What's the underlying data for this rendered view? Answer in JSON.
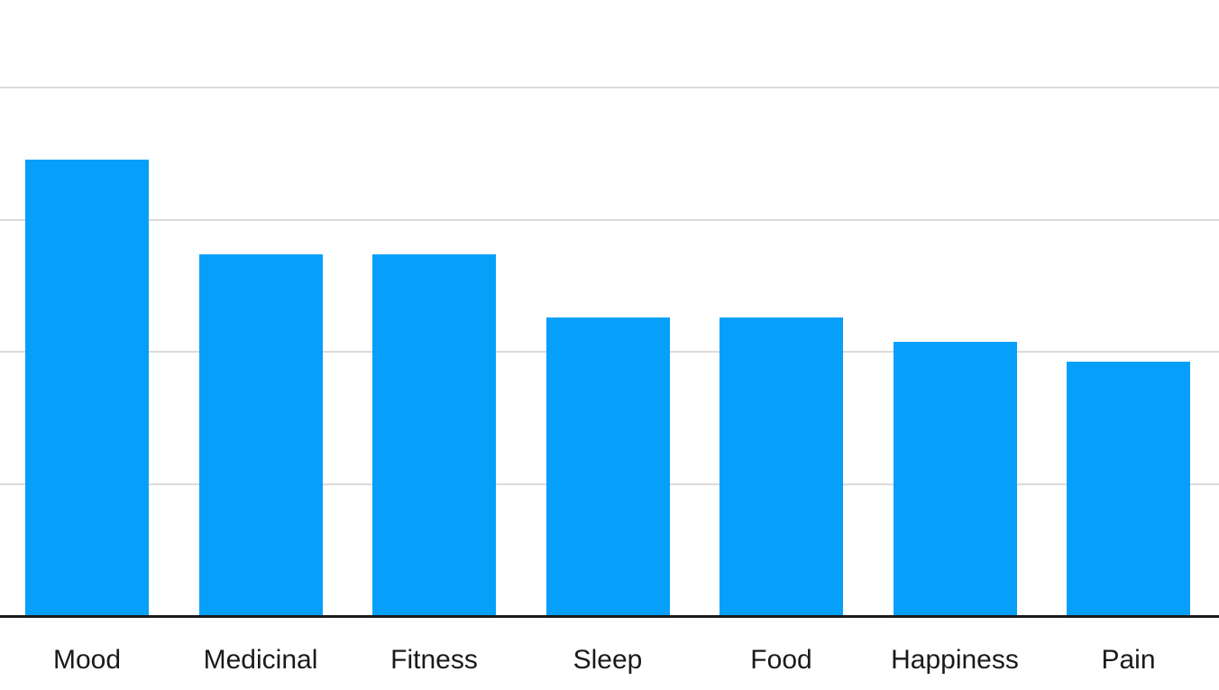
{
  "chart_data": {
    "type": "bar",
    "title": "",
    "xlabel": "",
    "ylabel": "",
    "categories": [
      "Mood",
      "Medicinal",
      "Fitness",
      "Sleep",
      "Food",
      "Happiness",
      "Pain"
    ],
    "values": [
      3.45,
      2.73,
      2.73,
      2.25,
      2.25,
      2.07,
      1.92
    ],
    "ylim": [
      0,
      4
    ],
    "gridline_values": [
      1,
      2,
      3,
      4
    ],
    "grid": "horizontal",
    "legend": "none",
    "y_tick_labels_shown": false,
    "colors": {
      "bar": "#06A0FA",
      "gridline": "#DBDBDB",
      "axis": "#1B1B1D",
      "label_text": "#1A1A1A",
      "background": "#FFFFFF"
    }
  }
}
